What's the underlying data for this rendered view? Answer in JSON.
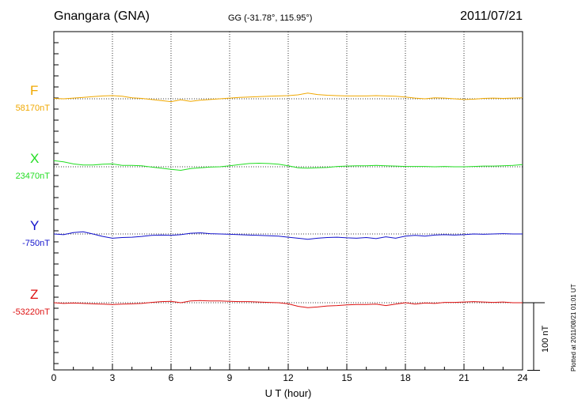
{
  "header": {
    "station": "Gnangara (GNA)",
    "coords": "GG (-31.78°, 115.95°)",
    "date": "2011/07/21"
  },
  "plotted_note": "Plotted at 2011/08/21 01:01 UT",
  "scale_bar": {
    "label": "100 nT",
    "value_nT": 100
  },
  "chart_data": {
    "type": "line",
    "title": "Gnangara (GNA)",
    "xlabel": "U T (hour)",
    "ylabel": "",
    "xlim": [
      0,
      24
    ],
    "xticks": [
      0,
      3,
      6,
      9,
      12,
      15,
      18,
      21,
      24
    ],
    "grid": true,
    "units": "nT",
    "series": [
      {
        "name": "F",
        "baseline_label": "58170nT",
        "color": "#f0a800",
        "points": [
          [
            0,
            1
          ],
          [
            0.5,
            0
          ],
          [
            1,
            2
          ],
          [
            1.5,
            4
          ],
          [
            2,
            6
          ],
          [
            2.5,
            8
          ],
          [
            3,
            9
          ],
          [
            3.5,
            7
          ],
          [
            4,
            3
          ],
          [
            4.5,
            1
          ],
          [
            5,
            -2
          ],
          [
            5.5,
            -5
          ],
          [
            6,
            -8
          ],
          [
            6.5,
            -3
          ],
          [
            7,
            -7
          ],
          [
            7.5,
            -4
          ],
          [
            8,
            -2
          ],
          [
            8.5,
            0
          ],
          [
            9,
            2
          ],
          [
            9.5,
            4
          ],
          [
            10,
            5
          ],
          [
            10.5,
            6
          ],
          [
            11,
            7
          ],
          [
            11.5,
            8
          ],
          [
            12,
            9
          ],
          [
            12.5,
            11
          ],
          [
            13,
            16
          ],
          [
            13.5,
            12
          ],
          [
            14,
            10
          ],
          [
            14.5,
            9
          ],
          [
            15,
            8
          ],
          [
            15.5,
            8
          ],
          [
            16,
            8
          ],
          [
            16.5,
            9
          ],
          [
            17,
            8
          ],
          [
            17.5,
            7
          ],
          [
            18,
            5
          ],
          [
            18.5,
            2
          ],
          [
            19,
            0
          ],
          [
            19.5,
            3
          ],
          [
            20,
            2
          ],
          [
            20.5,
            0
          ],
          [
            21,
            -2
          ],
          [
            21.5,
            -1
          ],
          [
            22,
            1
          ],
          [
            22.5,
            2
          ],
          [
            23,
            1
          ],
          [
            23.5,
            2
          ],
          [
            24,
            3
          ]
        ]
      },
      {
        "name": "X",
        "baseline_label": "23470nT",
        "color": "#22dd22",
        "points": [
          [
            0,
            17
          ],
          [
            0.5,
            14
          ],
          [
            1,
            8
          ],
          [
            1.5,
            5
          ],
          [
            2,
            5
          ],
          [
            2.5,
            7
          ],
          [
            3,
            8
          ],
          [
            3.5,
            4
          ],
          [
            4,
            4
          ],
          [
            4.5,
            3
          ],
          [
            5,
            -1
          ],
          [
            5.5,
            -4
          ],
          [
            6,
            -7
          ],
          [
            6.5,
            -10
          ],
          [
            7,
            -5
          ],
          [
            7.5,
            -3
          ],
          [
            8,
            -1
          ],
          [
            8.5,
            0
          ],
          [
            9,
            3
          ],
          [
            9.5,
            6
          ],
          [
            10,
            9
          ],
          [
            10.5,
            10
          ],
          [
            11,
            9
          ],
          [
            11.5,
            7
          ],
          [
            12,
            3
          ],
          [
            12.5,
            -3
          ],
          [
            13,
            -4
          ],
          [
            13.5,
            -3
          ],
          [
            14,
            -2
          ],
          [
            14.5,
            1
          ],
          [
            15,
            2
          ],
          [
            15.5,
            3
          ],
          [
            16,
            3
          ],
          [
            16.5,
            4
          ],
          [
            17,
            3
          ],
          [
            17.5,
            2
          ],
          [
            18,
            1
          ],
          [
            18.5,
            1
          ],
          [
            19,
            1
          ],
          [
            19.5,
            0
          ],
          [
            20,
            1
          ],
          [
            20.5,
            0
          ],
          [
            21,
            0
          ],
          [
            21.5,
            1
          ],
          [
            22,
            2
          ],
          [
            22.5,
            2
          ],
          [
            23,
            3
          ],
          [
            23.5,
            4
          ],
          [
            24,
            6
          ]
        ]
      },
      {
        "name": "Y",
        "baseline_label": "-750nT",
        "color": "#1111cc",
        "points": [
          [
            0,
            0
          ],
          [
            0.5,
            -2
          ],
          [
            1,
            4
          ],
          [
            1.5,
            6
          ],
          [
            2,
            0
          ],
          [
            2.5,
            -7
          ],
          [
            3,
            -12
          ],
          [
            3.5,
            -10
          ],
          [
            4,
            -9
          ],
          [
            4.5,
            -7
          ],
          [
            5,
            -4
          ],
          [
            5.5,
            -3
          ],
          [
            6,
            -4
          ],
          [
            6.5,
            -2
          ],
          [
            7,
            2
          ],
          [
            7.5,
            3
          ],
          [
            8,
            1
          ],
          [
            8.5,
            0
          ],
          [
            9,
            -1
          ],
          [
            9.5,
            -2
          ],
          [
            10,
            -3
          ],
          [
            10.5,
            -4
          ],
          [
            11,
            -5
          ],
          [
            11.5,
            -6
          ],
          [
            12,
            -9
          ],
          [
            12.5,
            -12
          ],
          [
            13,
            -15
          ],
          [
            13.5,
            -12
          ],
          [
            14,
            -10
          ],
          [
            14.5,
            -9
          ],
          [
            15,
            -11
          ],
          [
            15.5,
            -12
          ],
          [
            16,
            -10
          ],
          [
            16.5,
            -13
          ],
          [
            17,
            -8
          ],
          [
            17.5,
            -12
          ],
          [
            18,
            -6
          ],
          [
            18.5,
            -4
          ],
          [
            19,
            -6
          ],
          [
            19.5,
            -3
          ],
          [
            20,
            -2
          ],
          [
            20.5,
            -3
          ],
          [
            21,
            -2
          ],
          [
            21.5,
            0
          ],
          [
            22,
            -1
          ],
          [
            22.5,
            0
          ],
          [
            23,
            1
          ],
          [
            23.5,
            0
          ],
          [
            24,
            0
          ]
        ]
      },
      {
        "name": "Z",
        "baseline_label": "-53220nT",
        "color": "#dd1111",
        "points": [
          [
            0,
            0
          ],
          [
            0.5,
            -2
          ],
          [
            1,
            -1
          ],
          [
            1.5,
            -2
          ],
          [
            2,
            -3
          ],
          [
            2.5,
            -4
          ],
          [
            3,
            -5
          ],
          [
            3.5,
            -4
          ],
          [
            4,
            -3
          ],
          [
            4.5,
            -2
          ],
          [
            5,
            1
          ],
          [
            5.5,
            3
          ],
          [
            6,
            4
          ],
          [
            6.5,
            0
          ],
          [
            7,
            5
          ],
          [
            7.5,
            6
          ],
          [
            8,
            5
          ],
          [
            8.5,
            5
          ],
          [
            9,
            4
          ],
          [
            9.5,
            3
          ],
          [
            10,
            3
          ],
          [
            10.5,
            2
          ],
          [
            11,
            1
          ],
          [
            11.5,
            0
          ],
          [
            12,
            -3
          ],
          [
            12.5,
            -10
          ],
          [
            13,
            -14
          ],
          [
            13.5,
            -12
          ],
          [
            14,
            -9
          ],
          [
            14.5,
            -8
          ],
          [
            15,
            -6
          ],
          [
            15.5,
            -5
          ],
          [
            16,
            -5
          ],
          [
            16.5,
            -4
          ],
          [
            17,
            -8
          ],
          [
            17.5,
            -4
          ],
          [
            18,
            0
          ],
          [
            18.5,
            -4
          ],
          [
            19,
            -1
          ],
          [
            19.5,
            -2
          ],
          [
            20,
            1
          ],
          [
            20.5,
            1
          ],
          [
            21,
            2
          ],
          [
            21.5,
            3
          ],
          [
            22,
            2
          ],
          [
            22.5,
            1
          ],
          [
            23,
            2
          ],
          [
            23.5,
            0
          ],
          [
            24,
            0
          ]
        ]
      }
    ]
  }
}
